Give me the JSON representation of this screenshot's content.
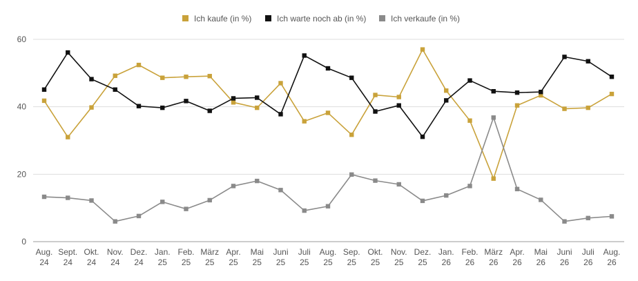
{
  "chart_data": {
    "type": "line",
    "title": "",
    "xlabel": "",
    "ylabel": "",
    "ylim": [
      0,
      60
    ],
    "yticks": [
      0,
      20,
      40,
      60
    ],
    "grid": true,
    "legend_position": "top-center",
    "categories": [
      [
        "Aug.",
        "24"
      ],
      [
        "Sept.",
        "24"
      ],
      [
        "Okt.",
        "24"
      ],
      [
        "Nov.",
        "24"
      ],
      [
        "Dez.",
        "24"
      ],
      [
        "Jan.",
        "25"
      ],
      [
        "Feb.",
        "25"
      ],
      [
        "März",
        "25"
      ],
      [
        "Apr.",
        "25"
      ],
      [
        "Mai",
        "25"
      ],
      [
        "Juni",
        "25"
      ],
      [
        "Juli",
        "25"
      ],
      [
        "Aug.",
        "25"
      ],
      [
        "Sep.",
        "25"
      ],
      [
        "Okt.",
        "25"
      ],
      [
        "Nov.",
        "25"
      ],
      [
        "Dez.",
        "25"
      ],
      [
        "Jan.",
        "26"
      ],
      [
        "Feb.",
        "26"
      ],
      [
        "März",
        "26"
      ],
      [
        "Apr.",
        "26"
      ],
      [
        "Mai",
        "26"
      ],
      [
        "Juni",
        "26"
      ],
      [
        "Juli",
        "26"
      ],
      [
        "Aug.",
        "26"
      ]
    ],
    "series": [
      {
        "name": "Ich kaufe (in %)",
        "color": "#c9a23a",
        "values": [
          41.8,
          31,
          39.8,
          49.2,
          52.4,
          48.6,
          48.9,
          49.1,
          41.3,
          39.7,
          47,
          35.7,
          38.2,
          31.7,
          43.5,
          42.9,
          57,
          44.8,
          35.9,
          18.7,
          40.4,
          43.4,
          39.4,
          39.7,
          43.8
        ]
      },
      {
        "name": "Ich warte noch ab (in %)",
        "color": "#111111",
        "values": [
          45.1,
          56.1,
          48.2,
          45.1,
          40.2,
          39.7,
          41.7,
          38.8,
          42.5,
          42.7,
          37.8,
          55.2,
          51.4,
          48.6,
          38.6,
          40.4,
          31.1,
          41.9,
          47.8,
          44.6,
          44.2,
          44.4,
          54.8,
          53.5,
          48.9
        ]
      },
      {
        "name": "Ich verkaufe (in %)",
        "color": "#8a8a8a",
        "values": [
          13.3,
          13,
          12.2,
          6,
          7.6,
          11.8,
          9.7,
          12.3,
          16.5,
          18,
          15.3,
          9.2,
          10.5,
          19.9,
          18.1,
          17,
          12.1,
          13.7,
          16.5,
          36.8,
          15.6,
          12.4,
          6,
          7,
          7.5
        ]
      }
    ]
  }
}
